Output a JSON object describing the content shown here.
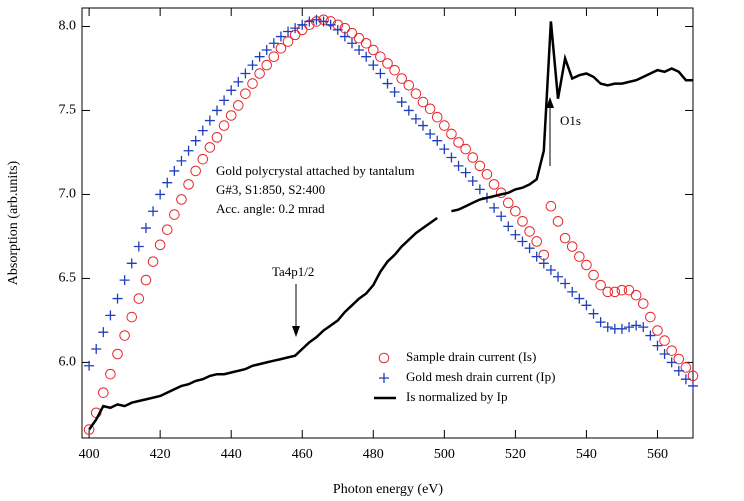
{
  "chart_data": {
    "type": "scatter",
    "xlabel": "Photon energy (eV)",
    "ylabel": "Absorption (arb.units)",
    "xlim": [
      398,
      570
    ],
    "ylim": [
      5.55,
      8.11
    ],
    "xticks": [
      400,
      420,
      440,
      460,
      480,
      500,
      520,
      540,
      560
    ],
    "yticks": [
      {
        "value": 6,
        "label": "6.0"
      },
      {
        "value": 6.5,
        "label": "6.5"
      },
      {
        "value": 7,
        "label": "7.0"
      },
      {
        "value": 7.5,
        "label": "7.5"
      },
      {
        "value": 8,
        "label": "8.0"
      }
    ],
    "legend": "lower right",
    "annotations": [
      "Gold polycrystal attached by tantalum",
      "G#3, S1:850, S2:400",
      "Acc. angle: 0.2 mrad",
      "Ta4p1/2",
      "O1s"
    ],
    "x": [
      400,
      402,
      404,
      406,
      408,
      410,
      412,
      414,
      416,
      418,
      420,
      422,
      424,
      426,
      428,
      430,
      432,
      434,
      436,
      438,
      440,
      442,
      444,
      446,
      448,
      450,
      452,
      454,
      456,
      458,
      460,
      462,
      464,
      466,
      468,
      470,
      472,
      474,
      476,
      478,
      480,
      482,
      484,
      486,
      488,
      490,
      492,
      494,
      496,
      498,
      500,
      502,
      504,
      506,
      508,
      510,
      512,
      514,
      516,
      518,
      520,
      522,
      524,
      526,
      528,
      530,
      532,
      534,
      536,
      538,
      540,
      542,
      544,
      546,
      548,
      550,
      552,
      554,
      556,
      558,
      560,
      562,
      564,
      566,
      568,
      570
    ],
    "series": [
      {
        "name": "Sample drain current (Is)",
        "color": "#e8262b",
        "marker": "circle",
        "values": [
          5.6,
          5.7,
          5.82,
          5.93,
          6.05,
          6.16,
          6.27,
          6.38,
          6.49,
          6.6,
          6.7,
          6.79,
          6.88,
          6.97,
          7.06,
          7.14,
          7.21,
          7.28,
          7.34,
          7.41,
          7.47,
          7.53,
          7.6,
          7.66,
          7.72,
          7.77,
          7.82,
          7.87,
          7.91,
          7.95,
          7.98,
          8.01,
          8.03,
          8.04,
          8.03,
          8.01,
          7.99,
          7.96,
          7.93,
          7.9,
          7.86,
          7.82,
          7.78,
          7.74,
          7.69,
          7.65,
          7.6,
          7.55,
          7.51,
          7.46,
          7.41,
          7.36,
          7.31,
          7.27,
          7.22,
          7.17,
          7.12,
          7.06,
          7.01,
          6.95,
          6.9,
          6.84,
          6.78,
          6.72,
          6.64,
          6.93,
          6.84,
          6.74,
          6.69,
          6.63,
          6.58,
          6.52,
          6.46,
          6.42,
          6.42,
          6.43,
          6.43,
          6.4,
          6.35,
          6.27,
          6.19,
          6.13,
          6.07,
          6.02,
          5.97,
          5.92
        ]
      },
      {
        "name": "Gold mesh drain current (Ip)",
        "color": "#1f3fbf",
        "marker": "plus",
        "values": [
          5.98,
          6.08,
          6.18,
          6.28,
          6.38,
          6.49,
          6.59,
          6.69,
          6.8,
          6.9,
          7.0,
          7.07,
          7.14,
          7.2,
          7.26,
          7.32,
          7.38,
          7.44,
          7.5,
          7.56,
          7.62,
          7.67,
          7.72,
          7.77,
          7.82,
          7.86,
          7.9,
          7.94,
          7.97,
          7.99,
          8.01,
          8.03,
          8.04,
          8.03,
          8.01,
          7.98,
          7.94,
          7.9,
          7.86,
          7.82,
          7.77,
          7.72,
          7.66,
          7.61,
          7.55,
          7.5,
          7.45,
          7.41,
          7.36,
          7.32,
          7.27,
          7.22,
          7.17,
          7.13,
          7.08,
          7.03,
          6.98,
          6.92,
          6.87,
          6.81,
          6.76,
          6.72,
          6.68,
          6.63,
          6.59,
          6.55,
          6.51,
          6.47,
          6.42,
          6.38,
          6.34,
          6.29,
          6.24,
          6.21,
          6.2,
          6.2,
          6.21,
          6.22,
          6.21,
          6.16,
          6.1,
          6.05,
          6.0,
          5.95,
          5.9,
          5.86
        ]
      },
      {
        "name": "Is normalized by Ip",
        "color": "#000000",
        "marker": "line",
        "values": [
          5.6,
          5.66,
          5.74,
          5.73,
          5.75,
          5.74,
          5.76,
          5.77,
          5.78,
          5.79,
          5.8,
          5.82,
          5.84,
          5.86,
          5.87,
          5.89,
          5.9,
          5.92,
          5.93,
          5.93,
          5.94,
          5.95,
          5.96,
          5.98,
          5.99,
          6.0,
          6.01,
          6.02,
          6.03,
          6.04,
          6.08,
          6.12,
          6.15,
          6.19,
          6.22,
          6.25,
          6.3,
          6.34,
          6.38,
          6.41,
          6.46,
          6.54,
          6.6,
          6.64,
          6.69,
          6.73,
          6.77,
          6.8,
          6.83,
          6.86,
          null,
          6.9,
          6.91,
          6.93,
          6.95,
          6.97,
          6.98,
          6.99,
          7.0,
          7.01,
          7.03,
          7.04,
          7.06,
          7.09,
          7.26,
          8.03,
          7.57,
          7.81,
          7.69,
          7.71,
          7.72,
          7.7,
          7.66,
          7.65,
          7.66,
          7.66,
          7.67,
          7.68,
          7.7,
          7.72,
          7.74,
          7.73,
          7.75,
          7.73,
          7.68,
          7.68
        ]
      }
    ]
  }
}
